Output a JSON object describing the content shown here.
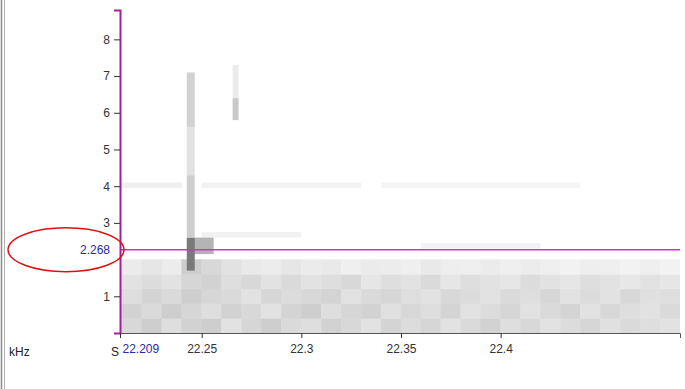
{
  "chart_data": {
    "type": "spectrogram",
    "y_label": "kHz",
    "x_label": "S",
    "xlim": [
      22.209,
      22.49
    ],
    "xticks": [
      22.209,
      22.25,
      22.3,
      22.35,
      22.4
    ],
    "ylim": [
      0,
      8.8
    ],
    "yticks": [
      1,
      3,
      4,
      5,
      6,
      7,
      8
    ],
    "cursor_y": 2.268,
    "zlim": [
      0,
      1
    ],
    "x_bins": [
      22.209,
      22.22,
      22.23,
      22.24,
      22.25,
      22.26,
      22.27,
      22.28,
      22.29,
      22.3,
      22.31,
      22.32,
      22.33,
      22.34,
      22.35,
      22.36,
      22.37,
      22.38,
      22.39,
      22.4,
      22.41,
      22.42,
      22.43,
      22.44,
      22.45,
      22.46,
      22.47,
      22.48,
      22.49
    ],
    "y_bins": [
      0,
      0.4,
      0.8,
      1.2,
      1.6,
      2.0
    ],
    "z": [
      [
        0.25,
        0.3,
        0.22,
        0.28,
        0.3,
        0.2,
        0.26,
        0.3,
        0.24,
        0.22,
        0.28,
        0.25,
        0.2,
        0.27,
        0.23,
        0.26,
        0.2,
        0.24,
        0.28,
        0.22,
        0.25,
        0.2,
        0.23,
        0.26,
        0.21,
        0.24,
        0.22,
        0.2
      ],
      [
        0.28,
        0.24,
        0.3,
        0.26,
        0.22,
        0.28,
        0.25,
        0.2,
        0.27,
        0.3,
        0.22,
        0.26,
        0.28,
        0.21,
        0.25,
        0.22,
        0.27,
        0.2,
        0.23,
        0.26,
        0.2,
        0.24,
        0.27,
        0.2,
        0.25,
        0.22,
        0.2,
        0.24
      ],
      [
        0.22,
        0.27,
        0.24,
        0.3,
        0.26,
        0.24,
        0.2,
        0.26,
        0.23,
        0.25,
        0.27,
        0.2,
        0.24,
        0.26,
        0.22,
        0.2,
        0.25,
        0.23,
        0.2,
        0.24,
        0.22,
        0.26,
        0.2,
        0.23,
        0.2,
        0.25,
        0.21,
        0.22
      ],
      [
        0.2,
        0.23,
        0.2,
        0.26,
        0.28,
        0.22,
        0.25,
        0.2,
        0.24,
        0.2,
        0.22,
        0.25,
        0.18,
        0.22,
        0.2,
        0.24,
        0.18,
        0.22,
        0.2,
        0.18,
        0.23,
        0.2,
        0.18,
        0.22,
        0.2,
        0.17,
        0.2,
        0.18
      ],
      [
        0.15,
        0.18,
        0.14,
        0.3,
        0.25,
        0.2,
        0.16,
        0.14,
        0.18,
        0.15,
        0.16,
        0.12,
        0.15,
        0.14,
        0.12,
        0.16,
        0.13,
        0.12,
        0.15,
        0.12,
        0.14,
        0.12,
        0.1,
        0.13,
        0.12,
        0.1,
        0.12,
        0.1
      ]
    ],
    "cells": [
      {
        "x0": 22.209,
        "x1": 22.24,
        "y0": 3.95,
        "y1": 4.1,
        "z": 0.12
      },
      {
        "x0": 22.25,
        "x1": 22.33,
        "y0": 3.95,
        "y1": 4.1,
        "z": 0.1
      },
      {
        "x0": 22.34,
        "x1": 22.44,
        "y0": 3.95,
        "y1": 4.1,
        "z": 0.08
      },
      {
        "x0": 22.25,
        "x1": 22.3,
        "y0": 2.6,
        "y1": 2.75,
        "z": 0.1
      },
      {
        "x0": 22.36,
        "x1": 22.42,
        "y0": 2.3,
        "y1": 2.45,
        "z": 0.1
      },
      {
        "x0": 22.244,
        "x1": 22.256,
        "y0": 2.15,
        "y1": 2.6,
        "z": 0.4
      },
      {
        "x0": 22.2425,
        "x1": 22.2465,
        "y0": 1.7,
        "y1": 2.6,
        "z": 0.6
      },
      {
        "x0": 22.2425,
        "x1": 22.2465,
        "y0": 2.6,
        "y1": 4.3,
        "z": 0.3
      },
      {
        "x0": 22.2425,
        "x1": 22.2465,
        "y0": 4.3,
        "y1": 5.6,
        "z": 0.2
      },
      {
        "x0": 22.2425,
        "x1": 22.2465,
        "y0": 5.6,
        "y1": 7.1,
        "z": 0.28
      },
      {
        "x0": 22.2655,
        "x1": 22.2685,
        "y0": 5.8,
        "y1": 6.4,
        "z": 0.32
      },
      {
        "x0": 22.2655,
        "x1": 22.2685,
        "y0": 6.4,
        "y1": 7.3,
        "z": 0.15
      }
    ]
  }
}
